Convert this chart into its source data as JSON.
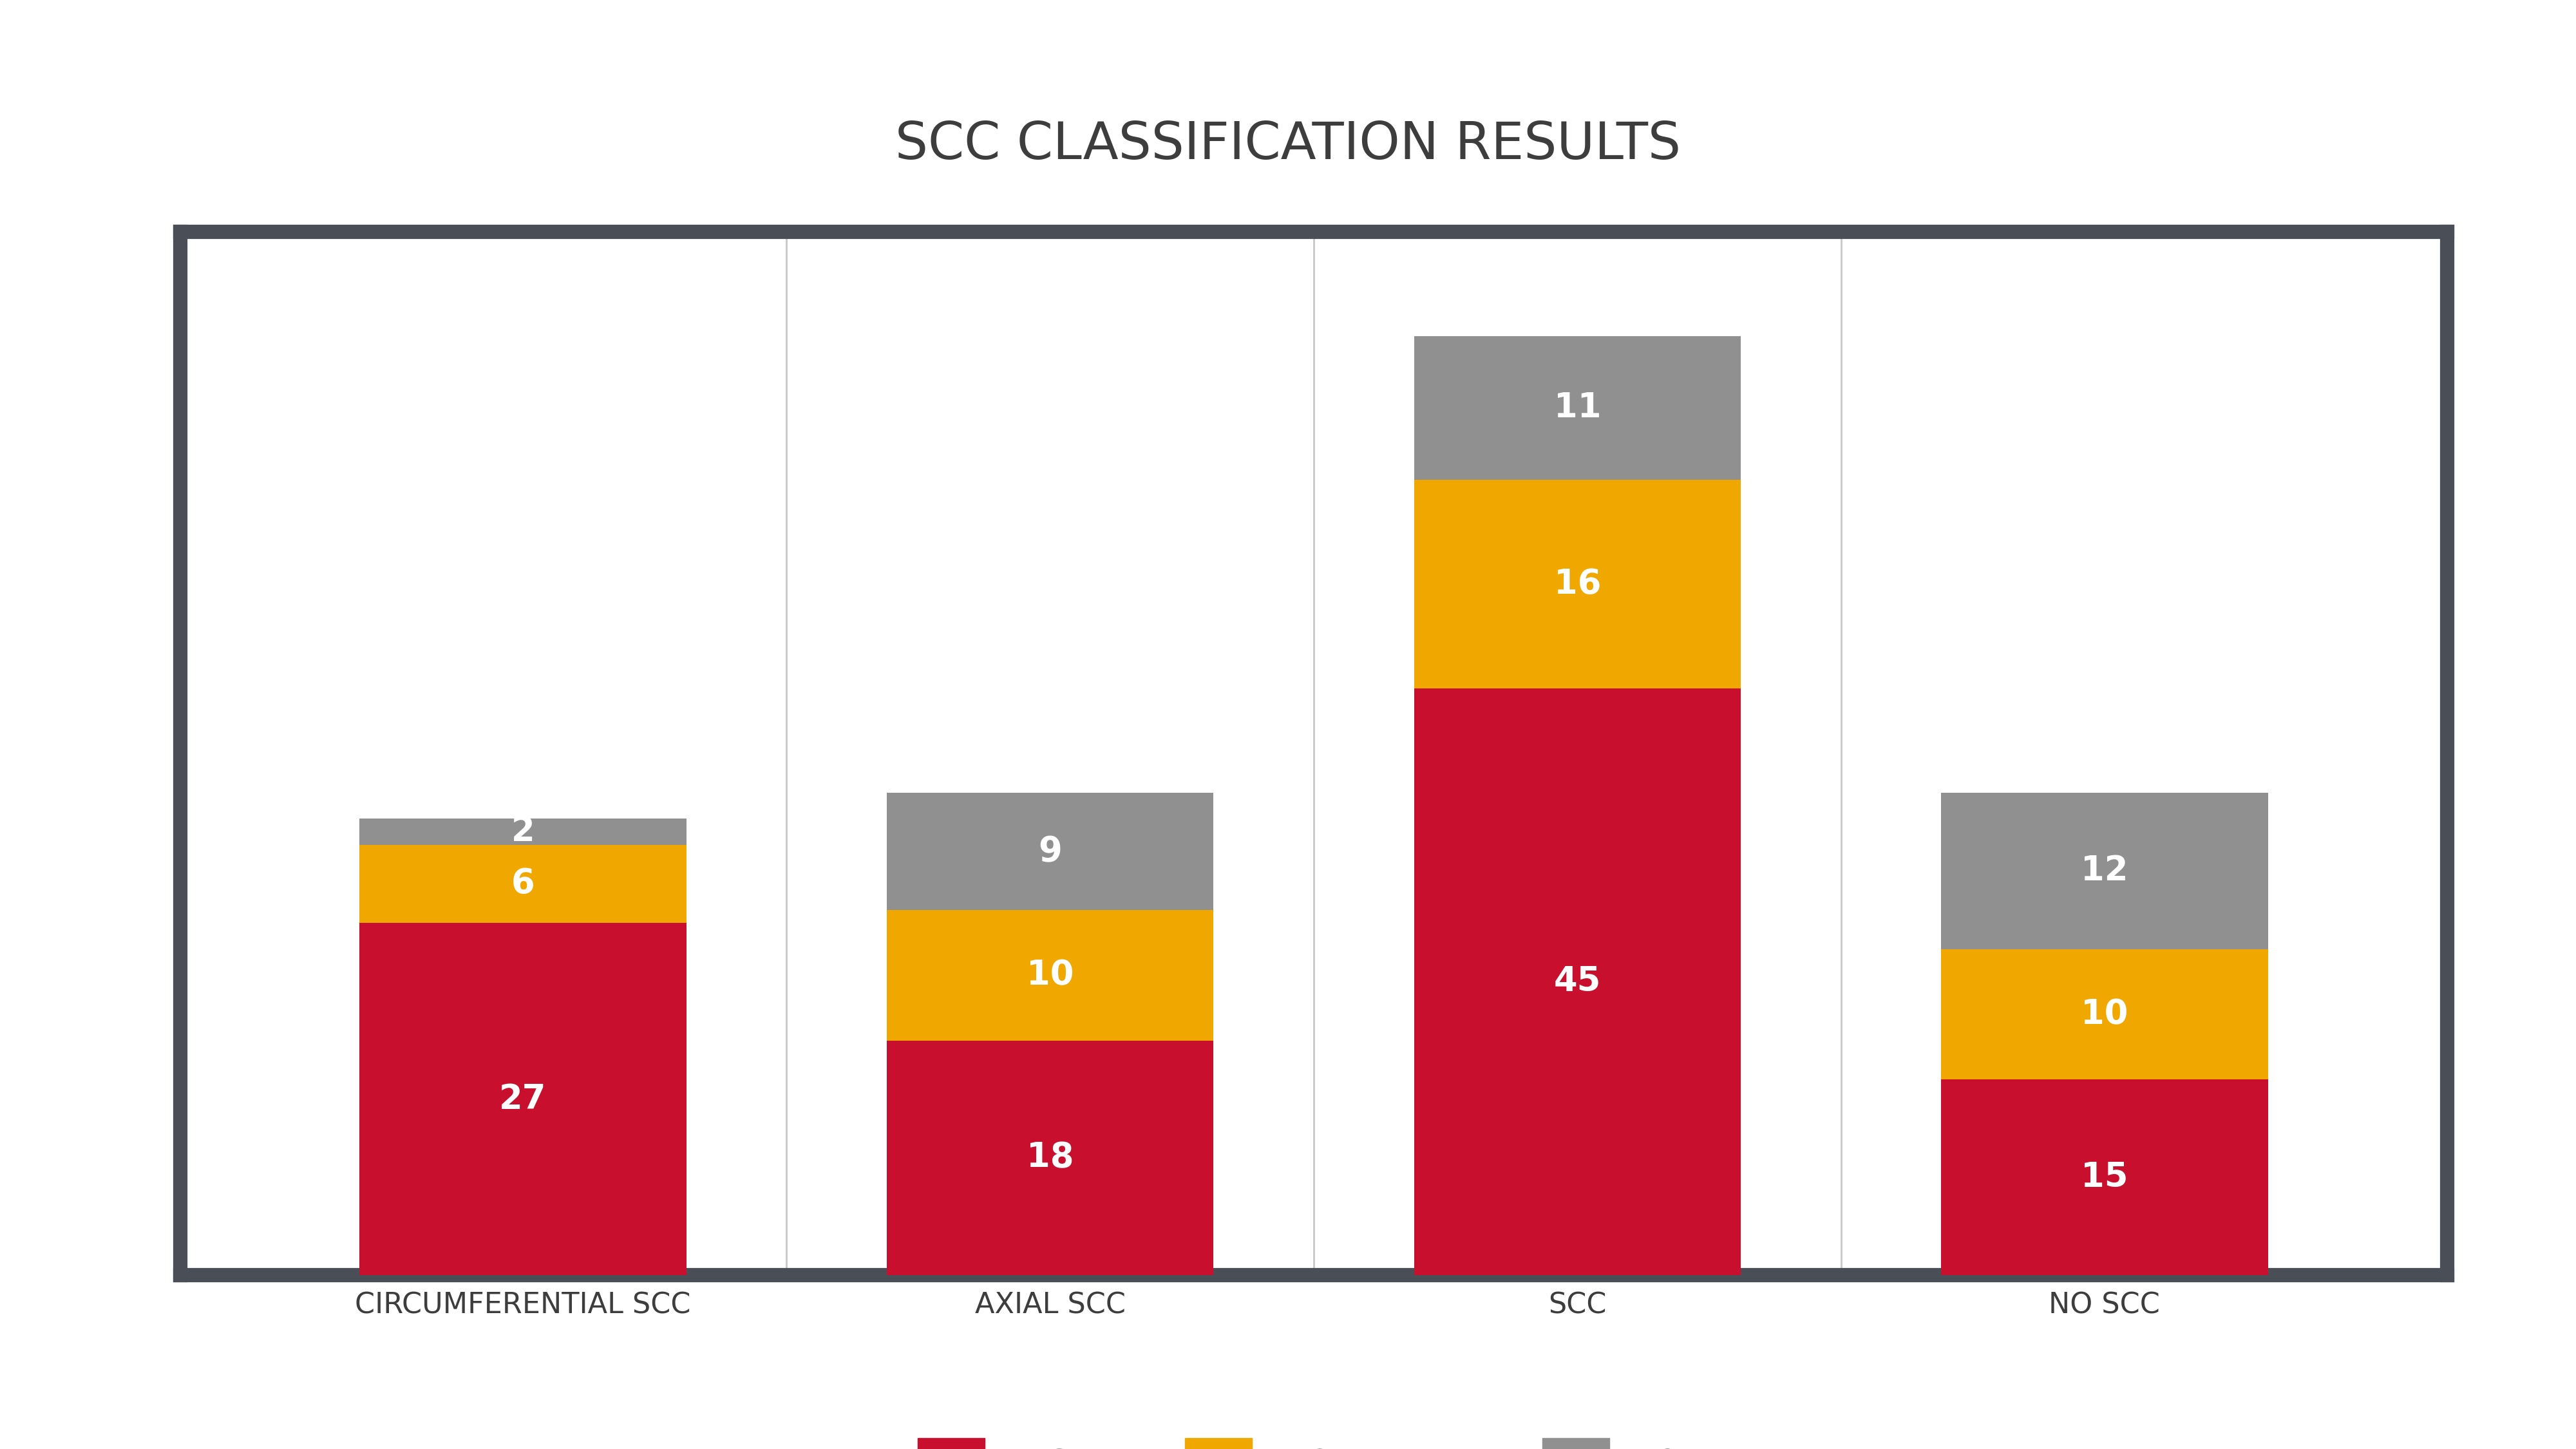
{
  "title": "SCC CLASSIFICATION RESULTS",
  "categories": [
    "CIRCUMFERENTIAL SCC",
    "AXIAL SCC",
    "SCC",
    "NO SCC"
  ],
  "high": [
    27,
    18,
    45,
    15
  ],
  "moderate": [
    6,
    10,
    16,
    10
  ],
  "low": [
    2,
    9,
    11,
    12
  ],
  "color_high": "#c8102e",
  "color_moderate": "#f0a800",
  "color_low": "#909090",
  "color_frame": "#4a4e57",
  "color_divider": "#c8c8c8",
  "color_bg": "#ffffff",
  "text_color": "#3d3d3d",
  "title_fontsize": 58,
  "tick_fontsize": 32,
  "value_fontsize": 38,
  "legend_fontsize": 34,
  "bar_width": 0.62,
  "ylim": [
    0,
    80
  ],
  "xlim": [
    -0.65,
    3.65
  ]
}
